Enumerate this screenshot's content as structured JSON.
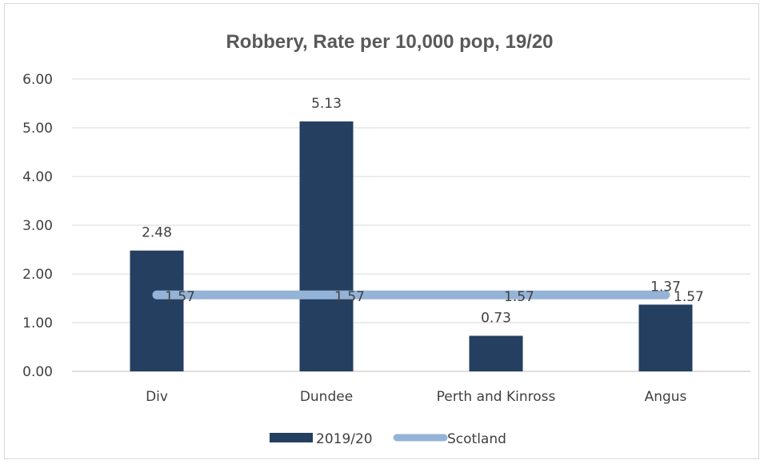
{
  "chart_data": {
    "type": "bar",
    "title": "Robbery, Rate per 10,000 pop, 19/20",
    "categories": [
      "Div",
      "Dundee",
      "Perth and Kinross",
      "Angus"
    ],
    "series": [
      {
        "name": "2019/20",
        "type": "bar",
        "values": [
          2.48,
          5.13,
          0.73,
          1.37
        ],
        "labels": [
          "2.48",
          "5.13",
          "0.73",
          "1.37"
        ],
        "color": "#243f60"
      },
      {
        "name": "Scotland",
        "type": "line",
        "values": [
          1.57,
          1.57,
          1.57,
          1.57
        ],
        "labels": [
          "1.57",
          "1.57",
          "1.57",
          "1.57"
        ],
        "color": "#95b3d7"
      }
    ],
    "yticks": [
      "0.00",
      "1.00",
      "2.00",
      "3.00",
      "4.00",
      "5.00",
      "6.00"
    ],
    "ylim": [
      0,
      6
    ],
    "grid": true,
    "legend": "bottom"
  }
}
